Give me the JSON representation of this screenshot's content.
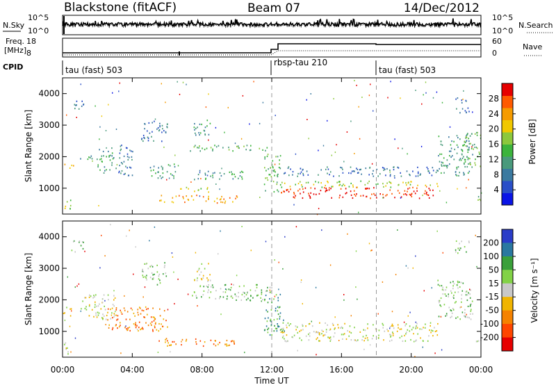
{
  "header": {
    "station": "Blackstone (fitACF)",
    "beam": "Beam 07",
    "date": "14/Dec/2012"
  },
  "noise_panel": {
    "left_label": "N.Sky",
    "right_label": "N.Search",
    "left_ticks": [
      "10^5",
      "10^0"
    ],
    "right_ticks": [
      "10^5",
      "10^0"
    ]
  },
  "freq_panel": {
    "left_label_line1": "Freq.",
    "left_label_line2": "[MHz]",
    "right_label": "Nave",
    "left_ticks": [
      "18",
      "8"
    ],
    "right_ticks": [
      "60",
      "0"
    ]
  },
  "cpid_panel": {
    "label": "CPID",
    "segments": [
      {
        "name": "tau (fast) 503",
        "start_hour": 0
      },
      {
        "name": "rbsp-tau 210",
        "start_hour": 12
      },
      {
        "name": "tau (fast) 503",
        "start_hour": 18
      }
    ]
  },
  "x_axis": {
    "label": "Time UT",
    "tick_labels": [
      "00:00",
      "04:00",
      "08:00",
      "12:00",
      "16:00",
      "20:00",
      "00:00"
    ]
  },
  "chart_data": [
    {
      "type": "heatmap",
      "name": "power",
      "ylabel": "Slant Range [km]",
      "y_tick_labels": [
        "1000",
        "2000",
        "3000",
        "4000"
      ],
      "ylim": [
        180,
        4500
      ],
      "xlim_hours": [
        0,
        24
      ],
      "colorbar_label": "Power [dB]",
      "colorbar_ticks": [
        "4",
        "8",
        "12",
        "16",
        "20",
        "24",
        "28"
      ],
      "colorbar_colors": [
        "#0a14e6",
        "#2a4fc8",
        "#3b7aa0",
        "#4a9a7c",
        "#3cb43c",
        "#8cc83c",
        "#f0c800",
        "#f59b00",
        "#ff5a00",
        "#e60000"
      ],
      "echo_regions": [
        {
          "t": [
            0.0,
            0.6
          ],
          "r": [
            1600,
            1800
          ],
          "level": 6
        },
        {
          "t": [
            0.0,
            0.5
          ],
          "r": [
            300,
            700
          ],
          "level": 5
        },
        {
          "t": [
            0.5,
            1.2
          ],
          "r": [
            3500,
            3900
          ],
          "level": 2
        },
        {
          "t": [
            1.0,
            2.0
          ],
          "r": [
            1900,
            2100
          ],
          "level": 3
        },
        {
          "t": [
            2.0,
            3.0
          ],
          "r": [
            1500,
            2300
          ],
          "level": 3
        },
        {
          "t": [
            3.0,
            4.0
          ],
          "r": [
            1400,
            2400
          ],
          "level": 2
        },
        {
          "t": [
            4.5,
            6.0
          ],
          "r": [
            2500,
            3200
          ],
          "level": 2
        },
        {
          "t": [
            5.0,
            6.5
          ],
          "r": [
            1300,
            1800
          ],
          "level": 3
        },
        {
          "t": [
            5.5,
            10.0
          ],
          "r": [
            550,
            800
          ],
          "level": 7
        },
        {
          "t": [
            6.5,
            8.5
          ],
          "r": [
            900,
            1050
          ],
          "level": 5
        },
        {
          "t": [
            7.5,
            10.5
          ],
          "r": [
            1300,
            1600
          ],
          "level": 3
        },
        {
          "t": [
            7.3,
            12.0
          ],
          "r": [
            2200,
            2400
          ],
          "level": 4
        },
        {
          "t": [
            7.5,
            8.5
          ],
          "r": [
            2600,
            3200
          ],
          "level": 3
        },
        {
          "t": [
            11.5,
            12.5
          ],
          "r": [
            900,
            2100
          ],
          "level": 4
        },
        {
          "t": [
            12.5,
            21.5
          ],
          "r": [
            700,
            1050
          ],
          "level": 9
        },
        {
          "t": [
            12.5,
            21.5
          ],
          "r": [
            1050,
            1250
          ],
          "level": 5
        },
        {
          "t": [
            12.5,
            21.5
          ],
          "r": [
            1400,
            1700
          ],
          "level": 2
        },
        {
          "t": [
            21.5,
            23.5
          ],
          "r": [
            1400,
            2700
          ],
          "level": 3
        },
        {
          "t": [
            23.0,
            24.0
          ],
          "r": [
            1700,
            2800
          ],
          "level": 4
        },
        {
          "t": [
            22.5,
            23.3
          ],
          "r": [
            3400,
            3900
          ],
          "level": 2
        },
        {
          "t": [
            23.7,
            24.0
          ],
          "r": [
            600,
            1000
          ],
          "level": 4
        }
      ]
    },
    {
      "type": "heatmap",
      "name": "velocity",
      "ylabel": "Slant Range [km]",
      "y_tick_labels": [
        "1000",
        "2000",
        "3000",
        "4000"
      ],
      "ylim": [
        180,
        4500
      ],
      "xlim_hours": [
        0,
        24
      ],
      "colorbar_label": "Velocity [m s⁻¹]",
      "colorbar_ticks": [
        "200",
        "100",
        "50",
        "15",
        "-15",
        "-50",
        "-100",
        "-200"
      ],
      "colorbar_colors": [
        "#2a3cc8",
        "#2a78a0",
        "#3aa03a",
        "#82d246",
        "#c8c8c8",
        "#f0b400",
        "#f58200",
        "#ff4600",
        "#e60000"
      ],
      "echo_regions": [
        {
          "t": [
            0.0,
            0.6
          ],
          "r": [
            1500,
            1800
          ],
          "level": 4
        },
        {
          "t": [
            0.0,
            0.5
          ],
          "r": [
            300,
            700
          ],
          "level": 4
        },
        {
          "t": [
            0.5,
            1.2
          ],
          "r": [
            3500,
            3900
          ],
          "level": 3
        },
        {
          "t": [
            1.0,
            3.0
          ],
          "r": [
            1400,
            2200
          ],
          "level": 4
        },
        {
          "t": [
            2.5,
            6.0
          ],
          "r": [
            1000,
            1800
          ],
          "level": 6
        },
        {
          "t": [
            4.5,
            6.0
          ],
          "r": [
            2500,
            3200
          ],
          "level": 3
        },
        {
          "t": [
            5.5,
            10.0
          ],
          "r": [
            550,
            800
          ],
          "level": 6
        },
        {
          "t": [
            7.3,
            12.0
          ],
          "r": [
            2000,
            2500
          ],
          "level": 3
        },
        {
          "t": [
            7.5,
            8.5
          ],
          "r": [
            2600,
            3200
          ],
          "level": 4
        },
        {
          "t": [
            11.5,
            12.7
          ],
          "r": [
            900,
            2200
          ],
          "level": 2
        },
        {
          "t": [
            12.5,
            21.5
          ],
          "r": [
            700,
            1300
          ],
          "level": 4
        },
        {
          "t": [
            21.5,
            23.5
          ],
          "r": [
            1400,
            2700
          ],
          "level": 3
        },
        {
          "t": [
            22.5,
            23.3
          ],
          "r": [
            3400,
            3900
          ],
          "level": 3
        },
        {
          "t": [
            23.7,
            24.0
          ],
          "r": [
            600,
            1000
          ],
          "level": 4
        }
      ]
    }
  ]
}
